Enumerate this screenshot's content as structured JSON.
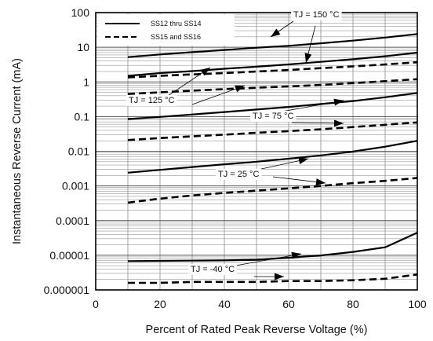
{
  "chart_data": {
    "type": "line",
    "title": "",
    "xlabel": "Percent of Rated Peak Reverse Voltage (%)",
    "ylabel": "Instantaneous Reverse Current (mA)",
    "xlim": [
      0,
      100
    ],
    "ylim": [
      1e-06,
      100
    ],
    "yscale": "log",
    "grid": true,
    "xticks": [
      0,
      20,
      40,
      60,
      80,
      100
    ],
    "xtick_labels": [
      "0",
      "20",
      "40",
      "60",
      "80",
      "100"
    ],
    "yticks": [
      100,
      10,
      1,
      0.1,
      0.01,
      0.001,
      0.0001,
      1e-05,
      1e-06
    ],
    "ytick_labels": [
      "100",
      "10",
      "1",
      "0.1",
      "0.01",
      "0.001",
      "0.0001",
      "0.00001",
      "0.000001"
    ],
    "legend": {
      "placement": "top-left",
      "entries": [
        {
          "label": "SS12 thru SS14",
          "style": "solid"
        },
        {
          "label": "SS15 and SS16",
          "style": "dashed"
        }
      ]
    },
    "x": [
      10,
      20,
      30,
      40,
      50,
      60,
      70,
      80,
      90,
      100
    ],
    "series": [
      {
        "device": "SS12 thru SS14",
        "style": "solid",
        "temp_label": "TJ = 150 °C",
        "values": [
          5.2,
          6.2,
          7.2,
          8.3,
          9.7,
          11,
          13,
          15.5,
          19,
          24
        ]
      },
      {
        "device": "SS12 thru SS14",
        "style": "solid",
        "temp_label": "TJ = 125 °C",
        "values": [
          1.5,
          1.8,
          2.05,
          2.4,
          2.75,
          3.2,
          3.8,
          4.5,
          5.5,
          7
        ]
      },
      {
        "device": "SS15 and SS16",
        "style": "dashed",
        "temp_label": "TJ = 150 °C",
        "values": [
          1.35,
          1.5,
          1.65,
          1.8,
          2.0,
          2.2,
          2.5,
          2.8,
          3.2,
          3.7
        ]
      },
      {
        "device": "SS15 and SS16",
        "style": "dashed",
        "temp_label": "TJ = 125 °C",
        "values": [
          0.45,
          0.5,
          0.56,
          0.62,
          0.68,
          0.74,
          0.82,
          0.92,
          1.05,
          1.2
        ]
      },
      {
        "device": "SS12 thru SS14",
        "style": "solid",
        "temp_label": "TJ = 75 °C",
        "values": [
          0.085,
          0.098,
          0.115,
          0.135,
          0.16,
          0.19,
          0.23,
          0.28,
          0.36,
          0.48
        ]
      },
      {
        "device": "SS15 and SS16",
        "style": "dashed",
        "temp_label": "TJ = 75 °C",
        "values": [
          0.021,
          0.024,
          0.027,
          0.03,
          0.034,
          0.038,
          0.043,
          0.05,
          0.058,
          0.068
        ]
      },
      {
        "device": "SS12 thru SS14",
        "style": "solid",
        "temp_label": "TJ = 25 °C",
        "values": [
          0.0024,
          0.0029,
          0.0035,
          0.0042,
          0.005,
          0.0061,
          0.0076,
          0.0098,
          0.0135,
          0.02
        ]
      },
      {
        "device": "SS15 and SS16",
        "style": "dashed",
        "temp_label": "TJ = 25 °C",
        "values": [
          0.00033,
          0.00043,
          0.00053,
          0.00063,
          0.00073,
          0.00085,
          0.001,
          0.0012,
          0.0014,
          0.0017
        ]
      },
      {
        "device": "SS12 thru SS14",
        "style": "solid",
        "temp_label": "TJ = -40 °C",
        "values": [
          6.8e-06,
          6.9e-06,
          7e-06,
          7.1e-06,
          7.4e-06,
          8.5e-06,
          9.9e-06,
          1.25e-05,
          1.7e-05,
          4.5e-05
        ]
      },
      {
        "device": "SS15 and SS16",
        "style": "dashed",
        "temp_label": "TJ = -40 °C",
        "values": [
          1.6e-06,
          1.6e-06,
          1.7e-06,
          1.7e-06,
          1.7e-06,
          1.8e-06,
          1.8e-06,
          1.9e-06,
          2.1e-06,
          2.8e-06
        ]
      }
    ],
    "annotations": [
      {
        "id": "tj150",
        "text": "TJ = 150 °C",
        "points_to": [
          "tj150-solid",
          "tj150-dashed"
        ]
      },
      {
        "id": "tj125",
        "text": "TJ = 125 °C",
        "points_to": [
          "tj125-solid",
          "tj125-dashed"
        ]
      },
      {
        "id": "tj75",
        "text": "TJ = 75 °C",
        "points_to": [
          "tj75-solid",
          "tj75-dashed"
        ]
      },
      {
        "id": "tj25",
        "text": "TJ = 25 °C",
        "points_to": [
          "tj25-solid",
          "tj25-dashed"
        ]
      },
      {
        "id": "tjm40",
        "text": "TJ = -40 °C",
        "points_to": [
          "tjm40-solid",
          "tjm40-dashed"
        ]
      }
    ]
  }
}
